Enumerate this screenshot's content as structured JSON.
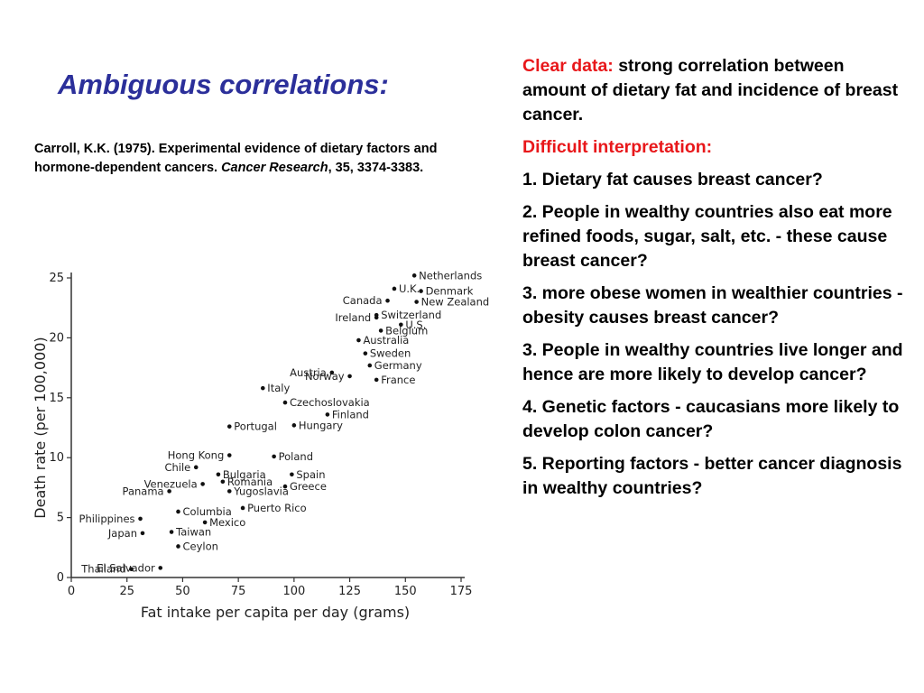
{
  "slide": {
    "title": "Ambiguous correlations:",
    "citation_main": "Carroll, K.K. (1975). Experimental evidence of dietary factors and hormone-dependent cancers.",
    "citation_journal": "Cancer Research",
    "citation_rest": ", 35, 3374-3383."
  },
  "right_panel": {
    "clear_label": "Clear data:",
    "clear_text": " strong correlation between amount of dietary fat and incidence of breast cancer.",
    "difficult_label": "Difficult interpretation:",
    "points": [
      "1. Dietary fat causes breast cancer?",
      "2. People in wealthy countries also eat more refined foods, sugar, salt, etc. - these cause breast cancer?",
      "3. more obese women in wealthier countries - obesity causes breast cancer?",
      "3. People in wealthy countries live longer and hence are more likely to develop cancer?",
      "4. Genetic factors - caucasians more likely to develop colon cancer?",
      "5. Reporting factors - better cancer diagnosis in wealthy countries?"
    ]
  },
  "chart_data": {
    "type": "scatter",
    "xlabel": "Fat intake per capita per day (grams)",
    "ylabel": "Death rate (per 100,000)",
    "xlim": [
      0,
      175
    ],
    "ylim": [
      0,
      25
    ],
    "xticks": [
      0,
      25,
      50,
      75,
      100,
      125,
      150,
      175
    ],
    "yticks": [
      0,
      5,
      10,
      15,
      20,
      25
    ],
    "points": [
      {
        "label": "Thailand",
        "x": 27,
        "y": 0.7
      },
      {
        "label": "El Salvador",
        "x": 40,
        "y": 0.8
      },
      {
        "label": "Japan",
        "x": 32,
        "y": 3.7
      },
      {
        "label": "Ceylon",
        "x": 48,
        "y": 2.6
      },
      {
        "label": "Taiwan",
        "x": 45,
        "y": 3.8
      },
      {
        "label": "Philippines",
        "x": 31,
        "y": 4.9
      },
      {
        "label": "Mexico",
        "x": 60,
        "y": 4.6
      },
      {
        "label": "Columbia",
        "x": 48,
        "y": 5.5
      },
      {
        "label": "Puerto Rico",
        "x": 77,
        "y": 5.8
      },
      {
        "label": "Panama",
        "x": 44,
        "y": 7.2
      },
      {
        "label": "Yugoslavia",
        "x": 71,
        "y": 7.2
      },
      {
        "label": "Venezuela",
        "x": 59,
        "y": 7.8
      },
      {
        "label": "Romania",
        "x": 68,
        "y": 8.0
      },
      {
        "label": "Greece",
        "x": 96,
        "y": 7.6
      },
      {
        "label": "Bulgaria",
        "x": 66,
        "y": 8.6
      },
      {
        "label": "Chile",
        "x": 56,
        "y": 9.2
      },
      {
        "label": "Spain",
        "x": 99,
        "y": 8.6
      },
      {
        "label": "Hong Kong",
        "x": 71,
        "y": 10.2
      },
      {
        "label": "Poland",
        "x": 91,
        "y": 10.1
      },
      {
        "label": "Portugal",
        "x": 71,
        "y": 12.6
      },
      {
        "label": "Hungary",
        "x": 100,
        "y": 12.7
      },
      {
        "label": "Finland",
        "x": 115,
        "y": 13.6
      },
      {
        "label": "Czechoslovakia",
        "x": 96,
        "y": 14.6
      },
      {
        "label": "Italy",
        "x": 86,
        "y": 15.8
      },
      {
        "label": "Norway",
        "x": 125,
        "y": 16.8
      },
      {
        "label": "Austria",
        "x": 117,
        "y": 17.1
      },
      {
        "label": "France",
        "x": 137,
        "y": 16.5
      },
      {
        "label": "Germany",
        "x": 134,
        "y": 17.7
      },
      {
        "label": "Sweden",
        "x": 132,
        "y": 18.7
      },
      {
        "label": "Australia",
        "x": 129,
        "y": 19.8
      },
      {
        "label": "Belgium",
        "x": 139,
        "y": 20.6
      },
      {
        "label": "U.S.",
        "x": 148,
        "y": 21.1
      },
      {
        "label": "Switzerland",
        "x": 137,
        "y": 21.9
      },
      {
        "label": "Ireland",
        "x": 137,
        "y": 21.7
      },
      {
        "label": "New Zealand",
        "x": 155,
        "y": 23.0
      },
      {
        "label": "Canada",
        "x": 142,
        "y": 23.1
      },
      {
        "label": "U.K.",
        "x": 145,
        "y": 24.1
      },
      {
        "label": "Denmark",
        "x": 157,
        "y": 23.9
      },
      {
        "label": "Netherlands",
        "x": 154,
        "y": 25.2
      }
    ]
  }
}
